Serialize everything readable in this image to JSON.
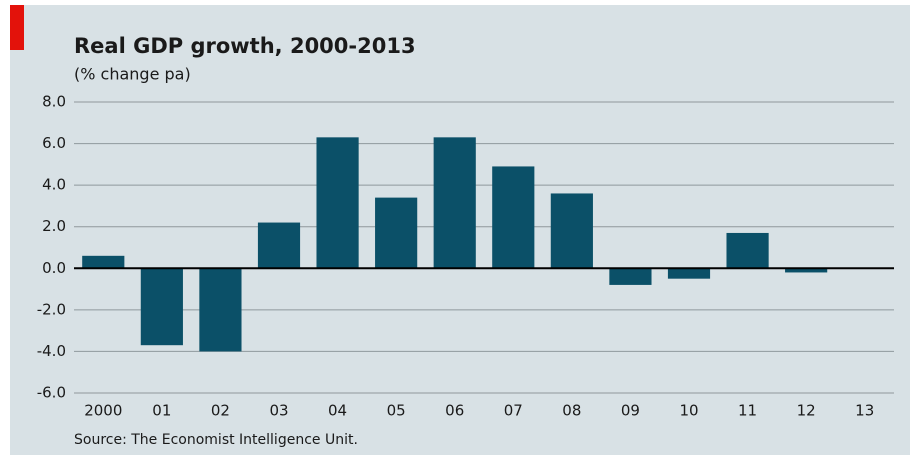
{
  "chart_data": {
    "type": "bar",
    "title": "Real GDP growth, 2000-2013",
    "subtitle": "(% change pa)",
    "source": "Source: The Economist Intelligence Unit.",
    "categories": [
      "2000",
      "01",
      "02",
      "03",
      "04",
      "05",
      "06",
      "07",
      "08",
      "09",
      "10",
      "11",
      "12",
      "13"
    ],
    "values": [
      0.6,
      -3.7,
      -4.0,
      2.2,
      6.3,
      3.4,
      6.3,
      4.9,
      3.6,
      -0.8,
      -0.5,
      1.7,
      -0.2,
      null
    ],
    "color": "#0b5068",
    "ylim": [
      -6,
      8
    ],
    "yticks": [
      {
        "value": -6,
        "label": "-6.0"
      },
      {
        "value": -4,
        "label": "-4.0"
      },
      {
        "value": -2,
        "label": "-2.0"
      },
      {
        "value": 0,
        "label": "0.0"
      },
      {
        "value": 2,
        "label": "2.0"
      },
      {
        "value": 4,
        "label": "4.0"
      },
      {
        "value": 6,
        "label": "6.0"
      },
      {
        "value": 8,
        "label": "8.0"
      }
    ],
    "grid": true
  }
}
